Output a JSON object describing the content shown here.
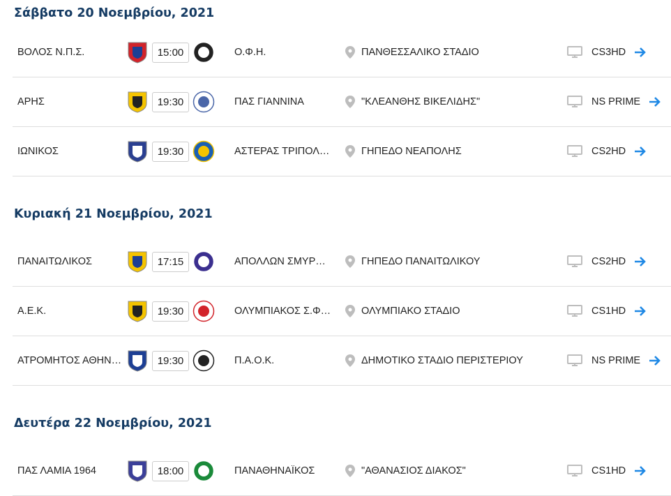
{
  "colors": {
    "heading": "#153b63",
    "arrow": "#1e88e5",
    "icon": "#bdbdbd"
  },
  "days": [
    {
      "title": "Σάββατο 20 Νοεμβρίου, 2021",
      "matches": [
        {
          "home": "ΒΟΛΟΣ Ν.Π.Σ.",
          "home_logo": {
            "icon": "volos-crest",
            "c1": "#d2232a",
            "c2": "#1d3f94"
          },
          "time": "15:00",
          "away": "Ο.Φ.Η.",
          "away_logo": {
            "icon": "ofi-crest",
            "c1": "#222",
            "c2": "#fff"
          },
          "stadium": "ΠΑΝΘΕΣΣΑΛΙΚΟ ΣΤΑΔΙΟ",
          "channel": "CS3HD"
        },
        {
          "home": "ΑΡΗΣ",
          "home_logo": {
            "icon": "aris-crest",
            "c1": "#f5c400",
            "c2": "#222"
          },
          "time": "19:30",
          "away": "ΠΑΣ ΓΙΑΝΝΙΝΑ",
          "away_logo": {
            "icon": "pas-giannina-crest",
            "c1": "#fff",
            "c2": "#4a66a8"
          },
          "stadium": "\"ΚΛΕΑΝΘΗΣ ΒΙΚΕΛΙΔΗΣ\"",
          "channel": "NS PRIME"
        },
        {
          "home": "ΙΩΝΙΚΟΣ",
          "home_logo": {
            "icon": "ionikos-crest",
            "c1": "#2a3f91",
            "c2": "#fff"
          },
          "time": "19:30",
          "away": "ΑΣΤΕΡΑΣ ΤΡΙΠΟΛΗΣ",
          "away_logo": {
            "icon": "asteras-crest",
            "c1": "#1a5fb4",
            "c2": "#f5c400"
          },
          "stadium": "ΓΗΠΕΔΟ ΝΕΑΠΟΛΗΣ",
          "channel": "CS2HD"
        }
      ]
    },
    {
      "title": "Κυριακή 21 Νοεμβρίου, 2021",
      "matches": [
        {
          "home": "ΠΑΝΑΙΤΩΛΙΚΟΣ",
          "home_logo": {
            "icon": "panaitolikos-crest",
            "c1": "#f5c400",
            "c2": "#1d3f94"
          },
          "time": "17:15",
          "away": "ΑΠΟΛΛΩΝ ΣΜΥΡΝΗΣ",
          "away_logo": {
            "icon": "apollon-crest",
            "c1": "#3b2f8f",
            "c2": "#fff"
          },
          "stadium": "ΓΗΠΕΔΟ ΠΑΝΑΙΤΩΛΙΚΟΥ",
          "channel": "CS2HD"
        },
        {
          "home": "Α.Ε.Κ.",
          "home_logo": {
            "icon": "aek-crest",
            "c1": "#f5c400",
            "c2": "#222"
          },
          "time": "19:30",
          "away": "ΟΛΥΜΠΙΑΚΟΣ Σ.Φ.Π.",
          "away_logo": {
            "icon": "olympiacos-crest",
            "c1": "#fff",
            "c2": "#d2232a"
          },
          "stadium": "ΟΛΥΜΠΙΑΚΟ ΣΤΑΔΙΟ",
          "channel": "CS1HD"
        },
        {
          "home": "ΑΤΡΟΜΗΤΟΣ ΑΘΗΝΩΝ",
          "home_logo": {
            "icon": "atromitos-crest",
            "c1": "#1d3f94",
            "c2": "#fff"
          },
          "time": "19:30",
          "away": "Π.Α.Ο.Κ.",
          "away_logo": {
            "icon": "paok-crest",
            "c1": "#fff",
            "c2": "#222"
          },
          "stadium": "ΔΗΜΟΤΙΚΟ ΣΤΑΔΙΟ ΠΕΡΙΣΤΕΡΙΟΥ",
          "channel": "NS PRIME"
        }
      ]
    },
    {
      "title": "Δευτέρα 22 Νοεμβρίου, 2021",
      "matches": [
        {
          "home": "ΠΑΣ ΛΑΜΙΑ 1964",
          "home_logo": {
            "icon": "lamia-crest",
            "c1": "#3b3f99",
            "c2": "#fff"
          },
          "time": "18:00",
          "away": "ΠΑΝΑΘΗΝΑΪΚΟΣ",
          "away_logo": {
            "icon": "panathinaikos-crest",
            "c1": "#1a8a3a",
            "c2": "#fff"
          },
          "stadium": "\"ΑΘΑΝΑΣΙΟΣ ΔΙΑΚΟΣ\"",
          "channel": "CS1HD"
        }
      ]
    }
  ]
}
